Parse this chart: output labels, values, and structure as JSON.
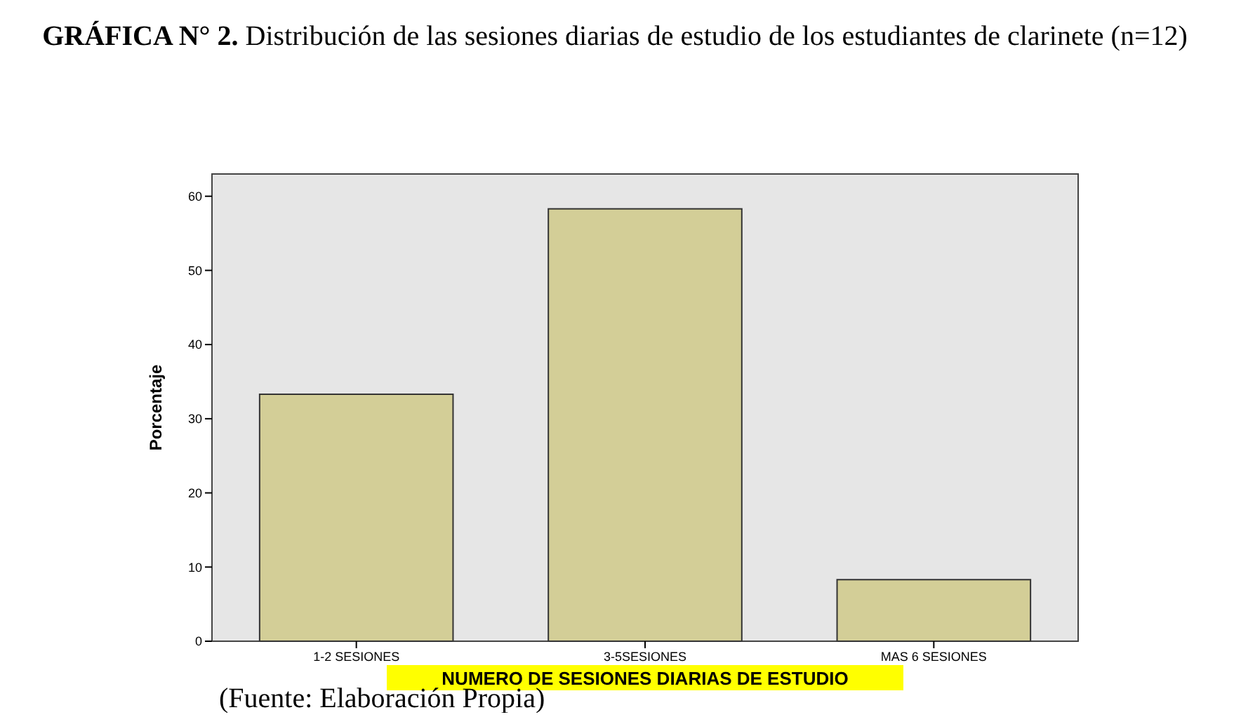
{
  "chart_data": {
    "type": "bar",
    "title": "GRÁFICA N° 2. Distribución de las sesiones diarias de estudio de los estudiantes de clarinete (n=12)",
    "xlabel": "NUMERO DE SESIONES DIARIAS DE ESTUDIO",
    "ylabel": "Porcentaje",
    "categories": [
      "1-2 SESIONES",
      "3-5SESIONES",
      "MAS 6 SESIONES"
    ],
    "values": [
      33.3,
      58.3,
      8.3
    ],
    "color": "#d3ce97",
    "ylim": [
      0,
      63
    ],
    "yticks": [
      0,
      10,
      20,
      30,
      40,
      50,
      60
    ],
    "grid": false,
    "annotations": [
      "(Fuente: Elaboración Propia)"
    ]
  }
}
